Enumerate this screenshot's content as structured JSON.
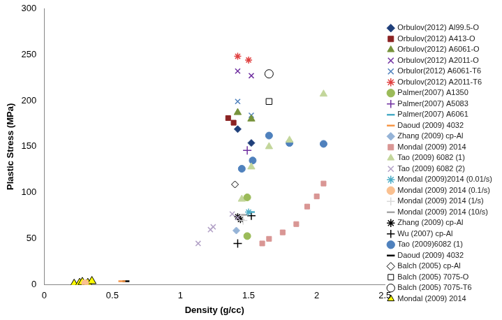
{
  "chart_data": {
    "type": "scatter",
    "x_label": "Density (g/cc)",
    "y_label": "Plastic Stress (MPa)",
    "xlim": [
      0,
      2.5
    ],
    "xticks": [
      0,
      0.5,
      1,
      1.5,
      2,
      2.5
    ],
    "ylim": [
      0,
      300
    ],
    "yticks": [
      0,
      50,
      100,
      150,
      200,
      250,
      300
    ],
    "grid": false,
    "legend": "right",
    "series": [
      {
        "name": "Orbulov(2012) Al99.5-O",
        "color": "#1f3f7a",
        "marker": "diamond",
        "x": [
          1.42,
          1.52
        ],
        "values": [
          169,
          154
        ]
      },
      {
        "name": "Orbulov(2012) A413-O",
        "color": "#8b2323",
        "marker": "square",
        "x": [
          1.35,
          1.39
        ],
        "values": [
          181,
          176
        ]
      },
      {
        "name": "Orbulov(2012) A6061-O",
        "color": "#77933c",
        "marker": "triangle",
        "x": [
          1.42,
          1.52
        ],
        "values": [
          187,
          180
        ]
      },
      {
        "name": "Orbulov(2012) A2011-O",
        "color": "#7030a0",
        "marker": "x",
        "x": [
          1.42,
          1.52
        ],
        "values": [
          232,
          227
        ]
      },
      {
        "name": "Orbulor(2012) A6061-T6",
        "color": "#4f81bd",
        "marker": "x",
        "x": [
          1.42,
          1.52
        ],
        "values": [
          199,
          184
        ]
      },
      {
        "name": "Orbulov(2012) A2011-T6",
        "color": "#e04040",
        "marker": "star",
        "x": [
          1.42,
          1.5
        ],
        "values": [
          248,
          244
        ]
      },
      {
        "name": "Palmer(2007) A1350",
        "color": "#9bbb59",
        "marker": "circle",
        "x": [
          1.49,
          1.49
        ],
        "values": [
          95,
          53
        ]
      },
      {
        "name": "Palmer(2007) A5083",
        "color": "#7030a0",
        "marker": "plus",
        "x": [
          1.49
        ],
        "values": [
          146
        ]
      },
      {
        "name": "Palmer(2007) A6061",
        "color": "#4bacc6",
        "marker": "dash",
        "x": [
          1.52
        ],
        "values": [
          79
        ]
      },
      {
        "name": "Daoud (2009) 4032",
        "color": "#f79646",
        "marker": "dash",
        "x": [
          0.57
        ],
        "values": [
          4
        ]
      },
      {
        "name": "Zhang (2009) cp-Al",
        "color": "#95b3d7",
        "marker": "diamond",
        "x": [
          1.41
        ],
        "values": [
          59
        ]
      },
      {
        "name": "Mondal (2009) 2014",
        "color": "#d99694",
        "marker": "square",
        "x": [
          1.6,
          1.65,
          1.75,
          1.85,
          1.93,
          2.0,
          2.05
        ],
        "values": [
          45,
          50,
          57,
          66,
          85,
          96,
          110
        ]
      },
      {
        "name": "Tao (2009) 6082 (1)",
        "color": "#c3d69b",
        "marker": "triangle",
        "x": [
          1.45,
          1.52,
          1.65,
          1.8,
          2.05
        ],
        "values": [
          93,
          128,
          150,
          157,
          207
        ]
      },
      {
        "name": "Tao (2009) 6082 (2)",
        "color": "#b3a2c7",
        "marker": "x",
        "x": [
          1.13,
          1.22,
          1.24,
          1.38,
          1.42
        ],
        "values": [
          45,
          60,
          63,
          77,
          73
        ]
      },
      {
        "name": "Mondal (2009)2014 (0.01/s)",
        "color": "#4bacc6",
        "marker": "star",
        "x": [
          1.5
        ],
        "values": [
          79
        ]
      },
      {
        "name": "Mondal (2009) 2014 (0.1/s)",
        "color": "#fac090",
        "marker": "circle",
        "x": [
          0.3
        ],
        "values": [
          2
        ]
      },
      {
        "name": "Mondal (2009) 2014 (1/s)",
        "color": "#d9d9d9",
        "marker": "plus",
        "x": [
          1.46
        ],
        "values": [
          70
        ]
      },
      {
        "name": "Mondal (2009) 2014 (10/s)",
        "color": "#a6a6a6",
        "marker": "dash",
        "x": [
          1.47
        ],
        "values": [
          76
        ]
      },
      {
        "name": "Zhang (2009) cp-Al",
        "color": "#000000",
        "marker": "star",
        "x": [
          1.42,
          1.44
        ],
        "values": [
          74,
          71
        ]
      },
      {
        "name": "Wu (2007) cp-Al",
        "color": "#000000",
        "marker": "plus",
        "x": [
          1.42,
          1.52
        ],
        "values": [
          45,
          75
        ]
      },
      {
        "name": "Tao (2009)6082 (1)",
        "color": "#4f81bd",
        "marker": "circle",
        "x": [
          1.45,
          1.53,
          1.65,
          1.8,
          2.05
        ],
        "values": [
          126,
          135,
          162,
          154,
          153
        ]
      },
      {
        "name": "Daoud (2009) 4032",
        "color": "#000000",
        "marker": "dash",
        "x": [
          0.6
        ],
        "values": [
          4
        ]
      },
      {
        "name": "Balch (2005) cp-Al",
        "color": "#000000",
        "marker": "open_diamond",
        "x": [
          1.4
        ],
        "values": [
          109
        ]
      },
      {
        "name": "Balch (2005) 7075-O",
        "color": "#000000",
        "marker": "open_square",
        "x": [
          1.65
        ],
        "values": [
          199
        ]
      },
      {
        "name": "Balch (2005) 7075-T6",
        "color": "#000000",
        "marker": "open_circle",
        "x": [
          1.65
        ],
        "values": [
          229
        ]
      },
      {
        "name": "Mondal (2009) 2014",
        "color": "#ffff00",
        "marker": "outlined_triangle",
        "x": [
          0.22,
          0.26,
          0.28,
          0.32,
          0.35
        ],
        "values": [
          1,
          2,
          3,
          2,
          4
        ]
      }
    ]
  }
}
